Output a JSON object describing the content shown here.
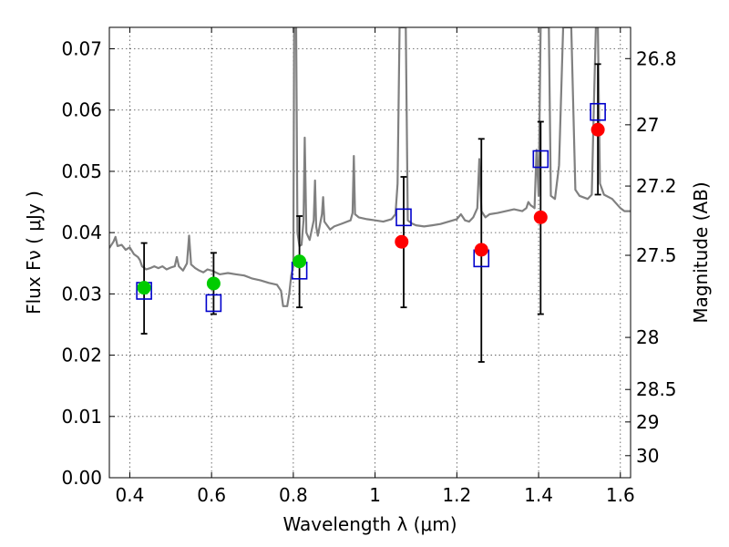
{
  "chart_data": {
    "type": "scatter",
    "title": "",
    "xlabel": "Wavelength  λ (μm)",
    "ylabel": "Flux  Fν  ( μJy )",
    "y2label": "Magnitude (AB)",
    "xlim": [
      0.35,
      1.625
    ],
    "ylim": [
      0.0,
      0.0735
    ],
    "grid": true,
    "x_ticks": [
      {
        "value": 0.4,
        "label": "0.4"
      },
      {
        "value": 0.6,
        "label": "0.6"
      },
      {
        "value": 0.8,
        "label": "0.8"
      },
      {
        "value": 1.0,
        "label": "1"
      },
      {
        "value": 1.2,
        "label": "1.2"
      },
      {
        "value": 1.4,
        "label": "1.4"
      },
      {
        "value": 1.6,
        "label": "1.6"
      }
    ],
    "y_ticks": [
      {
        "value": 0.0,
        "label": "0.00"
      },
      {
        "value": 0.01,
        "label": "0.01"
      },
      {
        "value": 0.02,
        "label": "0.02"
      },
      {
        "value": 0.03,
        "label": "0.03"
      },
      {
        "value": 0.04,
        "label": "0.04"
      },
      {
        "value": 0.05,
        "label": "0.05"
      },
      {
        "value": 0.06,
        "label": "0.06"
      },
      {
        "value": 0.07,
        "label": "0.07"
      }
    ],
    "y2_ticks": [
      {
        "flux": 0.0684,
        "label": "26.8"
      },
      {
        "flux": 0.0576,
        "label": "27"
      },
      {
        "flux": 0.0476,
        "label": "27.2"
      },
      {
        "flux": 0.0363,
        "label": "27.5"
      },
      {
        "flux": 0.0229,
        "label": "28"
      },
      {
        "flux": 0.0144,
        "label": "28.5"
      },
      {
        "flux": 0.0091,
        "label": "29"
      },
      {
        "flux": 0.0036,
        "label": "30"
      }
    ],
    "series": [
      {
        "kind": "line",
        "color": "#808080",
        "points": [
          [
            0.35,
            0.0375
          ],
          [
            0.36,
            0.0385
          ],
          [
            0.365,
            0.0393
          ],
          [
            0.37,
            0.0378
          ],
          [
            0.38,
            0.038
          ],
          [
            0.39,
            0.0372
          ],
          [
            0.4,
            0.0376
          ],
          [
            0.41,
            0.0365
          ],
          [
            0.42,
            0.036
          ],
          [
            0.425,
            0.0355
          ],
          [
            0.43,
            0.0345
          ],
          [
            0.44,
            0.034
          ],
          [
            0.45,
            0.0342
          ],
          [
            0.46,
            0.0345
          ],
          [
            0.47,
            0.0342
          ],
          [
            0.48,
            0.0345
          ],
          [
            0.49,
            0.034
          ],
          [
            0.5,
            0.0343
          ],
          [
            0.51,
            0.0345
          ],
          [
            0.515,
            0.036
          ],
          [
            0.52,
            0.0345
          ],
          [
            0.53,
            0.0338
          ],
          [
            0.54,
            0.035
          ],
          [
            0.545,
            0.0395
          ],
          [
            0.55,
            0.0348
          ],
          [
            0.56,
            0.0342
          ],
          [
            0.57,
            0.0338
          ],
          [
            0.58,
            0.0335
          ],
          [
            0.59,
            0.034
          ],
          [
            0.6,
            0.0338
          ],
          [
            0.61,
            0.0335
          ],
          [
            0.62,
            0.0332
          ],
          [
            0.64,
            0.0334
          ],
          [
            0.66,
            0.0332
          ],
          [
            0.68,
            0.033
          ],
          [
            0.7,
            0.0325
          ],
          [
            0.72,
            0.0322
          ],
          [
            0.74,
            0.0318
          ],
          [
            0.76,
            0.0315
          ],
          [
            0.77,
            0.0305
          ],
          [
            0.775,
            0.028
          ],
          [
            0.785,
            0.028
          ],
          [
            0.79,
            0.03
          ],
          [
            0.795,
            0.033
          ],
          [
            0.8,
            0.0345
          ],
          [
            0.802,
            0.0735
          ],
          [
            0.807,
            0.0735
          ],
          [
            0.81,
            0.04
          ],
          [
            0.815,
            0.0378
          ],
          [
            0.82,
            0.038
          ],
          [
            0.825,
            0.042
          ],
          [
            0.828,
            0.0555
          ],
          [
            0.832,
            0.04
          ],
          [
            0.84,
            0.0388
          ],
          [
            0.85,
            0.042
          ],
          [
            0.853,
            0.0485
          ],
          [
            0.856,
            0.041
          ],
          [
            0.86,
            0.0395
          ],
          [
            0.87,
            0.043
          ],
          [
            0.873,
            0.0458
          ],
          [
            0.876,
            0.0418
          ],
          [
            0.89,
            0.0405
          ],
          [
            0.9,
            0.041
          ],
          [
            0.92,
            0.0415
          ],
          [
            0.94,
            0.042
          ],
          [
            0.945,
            0.0432
          ],
          [
            0.948,
            0.0525
          ],
          [
            0.951,
            0.043
          ],
          [
            0.96,
            0.0425
          ],
          [
            0.98,
            0.0422
          ],
          [
            1.0,
            0.042
          ],
          [
            1.02,
            0.0418
          ],
          [
            1.04,
            0.0422
          ],
          [
            1.05,
            0.043
          ],
          [
            1.055,
            0.048
          ],
          [
            1.06,
            0.0735
          ],
          [
            1.075,
            0.0735
          ],
          [
            1.08,
            0.042
          ],
          [
            1.09,
            0.0415
          ],
          [
            1.1,
            0.0412
          ],
          [
            1.12,
            0.041
          ],
          [
            1.14,
            0.0412
          ],
          [
            1.16,
            0.0414
          ],
          [
            1.18,
            0.0418
          ],
          [
            1.2,
            0.0422
          ],
          [
            1.21,
            0.043
          ],
          [
            1.22,
            0.042
          ],
          [
            1.23,
            0.0418
          ],
          [
            1.24,
            0.0425
          ],
          [
            1.25,
            0.044
          ],
          [
            1.255,
            0.052
          ],
          [
            1.26,
            0.0435
          ],
          [
            1.27,
            0.0425
          ],
          [
            1.28,
            0.043
          ],
          [
            1.3,
            0.0432
          ],
          [
            1.32,
            0.0435
          ],
          [
            1.34,
            0.0438
          ],
          [
            1.36,
            0.0435
          ],
          [
            1.37,
            0.044
          ],
          [
            1.375,
            0.045
          ],
          [
            1.38,
            0.0445
          ],
          [
            1.39,
            0.044
          ],
          [
            1.395,
            0.0535
          ],
          [
            1.4,
            0.046
          ],
          [
            1.405,
            0.0735
          ],
          [
            1.425,
            0.0735
          ],
          [
            1.43,
            0.046
          ],
          [
            1.44,
            0.0455
          ],
          [
            1.45,
            0.051
          ],
          [
            1.46,
            0.0735
          ],
          [
            1.48,
            0.0735
          ],
          [
            1.49,
            0.047
          ],
          [
            1.5,
            0.046
          ],
          [
            1.52,
            0.0455
          ],
          [
            1.53,
            0.0462
          ],
          [
            1.535,
            0.06
          ],
          [
            1.54,
            0.0735
          ],
          [
            1.545,
            0.0735
          ],
          [
            1.55,
            0.048
          ],
          [
            1.56,
            0.0462
          ],
          [
            1.58,
            0.0455
          ],
          [
            1.6,
            0.044
          ],
          [
            1.61,
            0.0435
          ],
          [
            1.625,
            0.0435
          ]
        ]
      },
      {
        "kind": "errorbars",
        "color": "#000000",
        "bars": [
          {
            "x": 0.435,
            "low": 0.0235,
            "high": 0.0383
          },
          {
            "x": 0.605,
            "low": 0.0267,
            "high": 0.0367
          },
          {
            "x": 0.815,
            "low": 0.0278,
            "high": 0.0427
          },
          {
            "x": 1.07,
            "low": 0.0278,
            "high": 0.0491
          },
          {
            "x": 1.26,
            "low": 0.0189,
            "high": 0.0553
          },
          {
            "x": 1.405,
            "low": 0.0267,
            "high": 0.0581
          },
          {
            "x": 1.545,
            "low": 0.0462,
            "high": 0.0675
          }
        ]
      },
      {
        "kind": "squares",
        "color": "#0000cc",
        "points": [
          [
            0.435,
            0.0305
          ],
          [
            0.605,
            0.0285
          ],
          [
            0.815,
            0.0338
          ],
          [
            1.07,
            0.0425
          ],
          [
            1.26,
            0.0358
          ],
          [
            1.405,
            0.052
          ],
          [
            1.545,
            0.0597
          ]
        ]
      },
      {
        "kind": "circles",
        "color": "#00cc00",
        "points": [
          [
            0.435,
            0.031
          ],
          [
            0.605,
            0.0317
          ],
          [
            0.815,
            0.0353
          ]
        ]
      },
      {
        "kind": "circles",
        "color": "#ff0000",
        "points": [
          [
            1.065,
            0.0385
          ],
          [
            1.26,
            0.0372
          ],
          [
            1.405,
            0.0425
          ],
          [
            1.545,
            0.0568
          ]
        ]
      }
    ]
  }
}
